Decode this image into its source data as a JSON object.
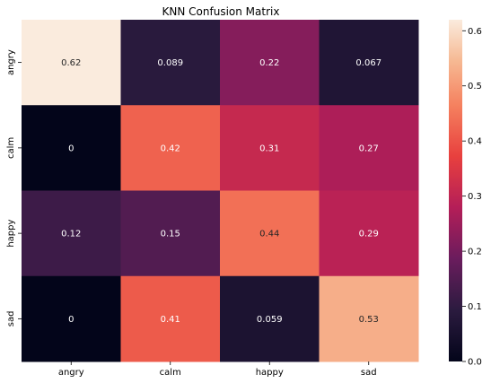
{
  "chart_data": {
    "type": "heatmap",
    "title": "KNN Confusion Matrix",
    "row_labels": [
      "angry",
      "calm",
      "happy",
      "sad"
    ],
    "col_labels": [
      "angry",
      "calm",
      "happy",
      "sad"
    ],
    "values": [
      [
        0.62,
        0.089,
        0.22,
        0.067
      ],
      [
        0,
        0.42,
        0.31,
        0.27
      ],
      [
        0.12,
        0.15,
        0.44,
        0.29
      ],
      [
        0,
        0.41,
        0.059,
        0.53
      ]
    ],
    "cell_labels": [
      [
        "0.62",
        "0.089",
        "0.22",
        "0.067"
      ],
      [
        "0",
        "0.42",
        "0.31",
        "0.27"
      ],
      [
        "0.12",
        "0.15",
        "0.44",
        "0.29"
      ],
      [
        "0",
        "0.41",
        "0.059",
        "0.53"
      ]
    ],
    "colorbar": {
      "range": [
        0,
        0.62
      ],
      "ticks": [
        0.0,
        0.1,
        0.2,
        0.3,
        0.4,
        0.5,
        0.6
      ],
      "tick_labels": [
        "0.0",
        "0.1",
        "0.2",
        "0.3",
        "0.4",
        "0.5",
        "0.6"
      ]
    },
    "colormap": "rocket"
  }
}
